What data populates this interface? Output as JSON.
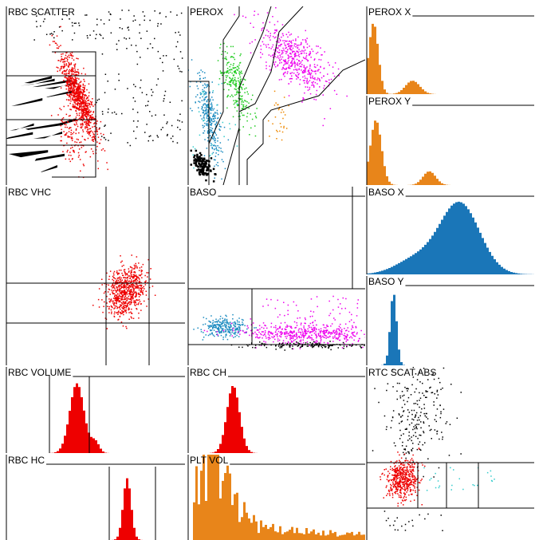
{
  "panels": [
    {
      "title": "RBC SCATTER"
    },
    {
      "title": "PEROX"
    },
    {
      "title": "PEROX X"
    },
    {
      "title": "PEROX Y"
    },
    {
      "title": "RBC VHC"
    },
    {
      "title": "BASO"
    },
    {
      "title": "BASO X"
    },
    {
      "title": "BASO Y"
    },
    {
      "title": "RBC VOLUME"
    },
    {
      "title": "RBC CH"
    },
    {
      "title": "RTC SCAT ABS"
    },
    {
      "title": "RBC HC"
    },
    {
      "title": "PLT VOL"
    }
  ]
}
